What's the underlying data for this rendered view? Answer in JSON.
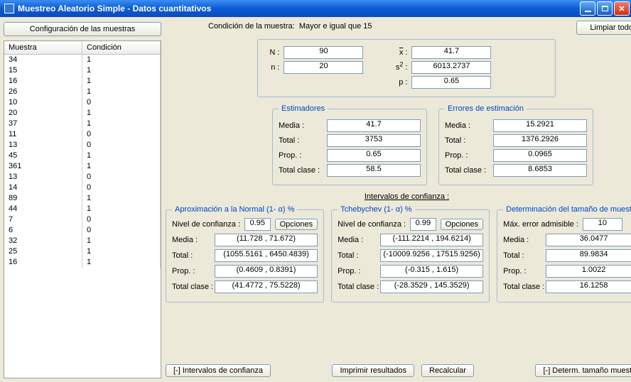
{
  "window": {
    "title": "Muestreo Aleatorio Simple - Datos cuantitativos"
  },
  "colors": {
    "titlebar_start": "#3b8ef0",
    "titlebar_end": "#0a4bc0",
    "close_start": "#f07a6b",
    "close_end": "#d03010",
    "bg": "#ece9d8",
    "fieldset_border": "#a7bbd4",
    "legend": "#0046c6",
    "input_border": "#7f9db9",
    "btn_border": "#7b9ebd"
  },
  "buttons": {
    "config": "Configuración de las muestras",
    "clear": "Limpiar todo",
    "opciones": "Opciones",
    "ci_toggle": "[-] Intervalos de confianza",
    "print": "Imprimir resultados",
    "recalc": "Recalcular",
    "size_toggle": "[-] Determ. tamaño muestra"
  },
  "condition_label": "Condición de la muestra:",
  "condition_value": "Mayor e igual que 15",
  "table": {
    "headers": [
      "Muestra",
      "Condición"
    ],
    "rows": [
      [
        "34",
        "1"
      ],
      [
        "15",
        "1"
      ],
      [
        "16",
        "1"
      ],
      [
        "26",
        "1"
      ],
      [
        "10",
        "0"
      ],
      [
        "20",
        "1"
      ],
      [
        "37",
        "1"
      ],
      [
        "11",
        "0"
      ],
      [
        "13",
        "0"
      ],
      [
        "45",
        "1"
      ],
      [
        "361",
        "1"
      ],
      [
        "13",
        "0"
      ],
      [
        "14",
        "0"
      ],
      [
        "89",
        "1"
      ],
      [
        "44",
        "1"
      ],
      [
        "7",
        "0"
      ],
      [
        "6",
        "0"
      ],
      [
        "32",
        "1"
      ],
      [
        "25",
        "1"
      ],
      [
        "16",
        "1"
      ]
    ]
  },
  "params": {
    "N_label": "N :",
    "N": "90",
    "n_label": "n :",
    "n": "20",
    "xbar_label_html": "x̄ :",
    "xbar": "41.7",
    "s2_label_html": "s² :",
    "s2": "6013.2737",
    "p_label": "p :",
    "p": "0.65"
  },
  "estimadores": {
    "legend": "Estimadores",
    "media_label": "Media :",
    "media": "41.7",
    "total_label": "Total :",
    "total": "3753",
    "prop_label": "Prop. :",
    "prop": "0.65",
    "tclase_label": "Total clase :",
    "tclase": "58.5"
  },
  "errores": {
    "legend": "Errores de estimación",
    "media_label": "Media :",
    "media": "15.2921",
    "total_label": "Total :",
    "total": "1376.2926",
    "prop_label": "Prop. :",
    "prop": "0.0965",
    "tclase_label": "Total clase :",
    "tclase": "8.6853"
  },
  "ci_title": "Intervalos de confianza :",
  "normal": {
    "legend": "Aproximación a la Normal  (1- α) %",
    "conf_label": "Nivel de confianza :",
    "conf": "0.95",
    "media_label": "Media :",
    "media": "(11.728  ,  71.672)",
    "total_label": "Total :",
    "total": "(1055.5161  ,  6450.4839)",
    "prop_label": "Prop. :",
    "prop": "(0.4609  ,  0.8391)",
    "tclase_label": "Total clase :",
    "tclase": "(41.4772  ,  75.5228)"
  },
  "tcheby": {
    "legend": "Tchebychev  (1- α) %",
    "conf_label": "Nivel de confianza :",
    "conf": "0.99",
    "media_label": "Media :",
    "media": "(-111.2214  ,  194.6214)",
    "total_label": "Total :",
    "total": "(-10009.9256  ,  17515.9256)",
    "prop_label": "Prop. :",
    "prop": "(-0.315  ,  1.615)",
    "tclase_label": "Total clase :",
    "tclase": "(-28.3529  ,  145.3529)"
  },
  "size": {
    "legend": "Determinación del tamaño de muestra",
    "maxerr_label": "Máx. error admisible :",
    "maxerr": "10",
    "media_label": "Media :",
    "media": "36.0477",
    "total_label": "Total :",
    "total": "89.9834",
    "prop_label": "Prop. :",
    "prop": "1.0022",
    "tclase_label": "Total clase :",
    "tclase": "16.1258"
  }
}
